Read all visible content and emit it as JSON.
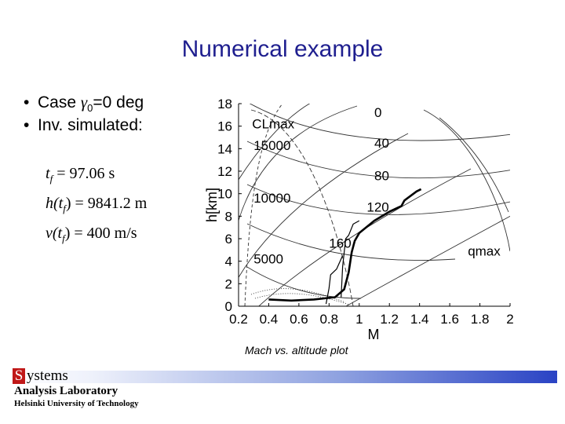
{
  "slide": {
    "title": "Numerical example",
    "bullets": [
      {
        "prefix": "Case ",
        "symbol": "γ",
        "sub": "0",
        "suffix": "=0 deg"
      },
      {
        "prefix": "Inv. simulated:",
        "symbol": "",
        "sub": "",
        "suffix": ""
      }
    ],
    "equations": [
      {
        "lhs": "t",
        "lhs_sub": "f",
        "rhs": "= 97.06 s"
      },
      {
        "lhs": "h(t",
        "lhs_sub": "f",
        "rhs": ") = 9841.2 m"
      },
      {
        "lhs": "v(t",
        "lhs_sub": "f",
        "rhs": ") = 400 m/s"
      }
    ],
    "caption": "Mach vs. altitude plot"
  },
  "footer": {
    "logo_initial": "S",
    "logo_rest": "ystems",
    "lab": "Analysis Laboratory",
    "university": "Helsinki University of Technology"
  },
  "chart_data": {
    "type": "line",
    "xlabel": "M",
    "ylabel": "h[km]",
    "xlim": [
      0.2,
      2
    ],
    "ylim": [
      0,
      18
    ],
    "xticks": [
      "0.2",
      "0.4",
      "0.6",
      "0.8",
      "1",
      "1.2",
      "1.4",
      "1.6",
      "1.8",
      "2"
    ],
    "yticks": [
      "0",
      "2",
      "4",
      "6",
      "8",
      "10",
      "12",
      "14",
      "16",
      "18"
    ],
    "annotations": [
      {
        "text": "0",
        "x": 1.1,
        "y": 16.8
      },
      {
        "text": "CLmax",
        "x": 0.29,
        "y": 15.8
      },
      {
        "text": "15000",
        "x": 0.3,
        "y": 13.9
      },
      {
        "text": "40",
        "x": 1.1,
        "y": 14.1
      },
      {
        "text": "80",
        "x": 1.1,
        "y": 11.2
      },
      {
        "text": "10000",
        "x": 0.3,
        "y": 9.2
      },
      {
        "text": "120",
        "x": 1.05,
        "y": 8.4
      },
      {
        "text": "160",
        "x": 0.8,
        "y": 5.2
      },
      {
        "text": "5000",
        "x": 0.3,
        "y": 3.8
      },
      {
        "text": "qmax",
        "x": 1.72,
        "y": 4.5
      }
    ],
    "series": [
      {
        "style": "thick",
        "points": [
          [
            0.4,
            0.6
          ],
          [
            0.55,
            0.5
          ],
          [
            0.7,
            0.6
          ],
          [
            0.84,
            0.8
          ],
          [
            0.9,
            1.5
          ],
          [
            0.93,
            3.0
          ],
          [
            0.95,
            4.8
          ],
          [
            0.97,
            5.8
          ],
          [
            1.0,
            6.5
          ],
          [
            1.1,
            7.6
          ],
          [
            1.2,
            8.4
          ],
          [
            1.28,
            8.9
          ],
          [
            1.3,
            9.4
          ],
          [
            1.38,
            10.2
          ],
          [
            1.41,
            10.4
          ]
        ]
      },
      {
        "style": "thin",
        "points": [
          [
            0.88,
            0.8
          ],
          [
            0.89,
            3.5
          ],
          [
            0.91,
            6.0
          ],
          [
            0.93,
            6.3
          ],
          [
            0.96,
            7.3
          ],
          [
            1.0,
            7.6
          ]
        ]
      },
      {
        "style": "thin",
        "points": [
          [
            0.78,
            0.2
          ],
          [
            0.8,
            1.6
          ],
          [
            0.81,
            2.8
          ],
          [
            0.85,
            3.3
          ],
          [
            0.89,
            4.5
          ]
        ]
      }
    ],
    "grid": true,
    "legend": "none"
  }
}
